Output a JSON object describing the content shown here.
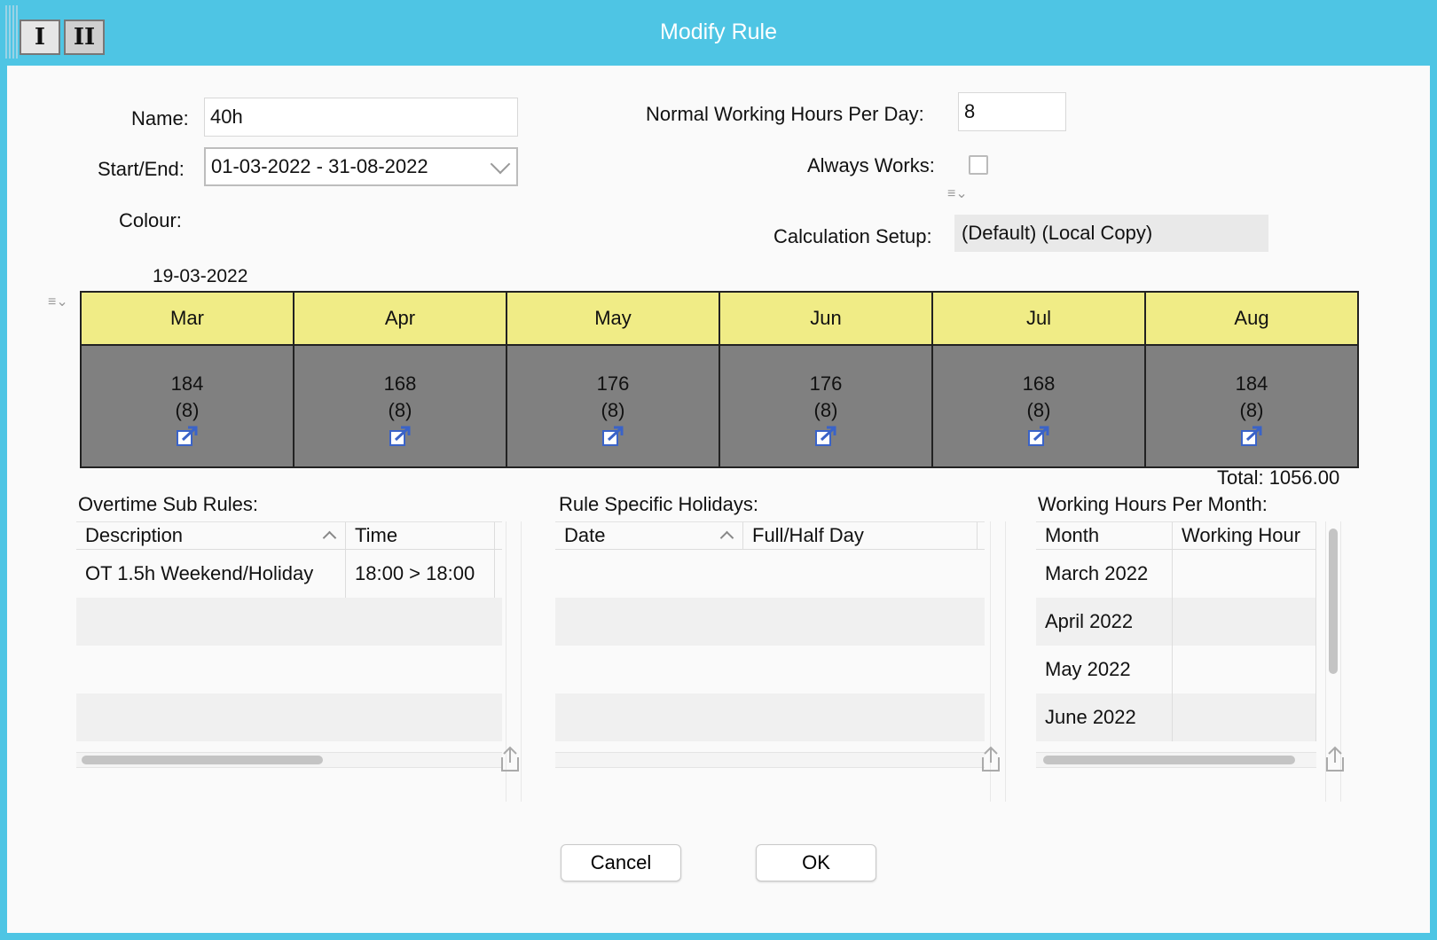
{
  "window": {
    "title": "Modify Rule",
    "toolbar": {
      "btn1": "I",
      "btn2": "II"
    }
  },
  "form": {
    "name_label": "Name:",
    "name_value": "40h",
    "startend_label": "Start/End:",
    "startend_value": "01-03-2022 - 31-08-2022",
    "colour_label": "Colour:",
    "nwh_label": "Normal Working Hours Per Day:",
    "nwh_value": "8",
    "always_label": "Always Works:",
    "always_checked": false,
    "calc_label": "Calculation Setup:",
    "calc_value": "(Default) (Local Copy)"
  },
  "calendar": {
    "marker_date": "19-03-2022",
    "months": [
      {
        "name": "Mar",
        "hours": "184",
        "per_day": "(8)"
      },
      {
        "name": "Apr",
        "hours": "168",
        "per_day": "(8)"
      },
      {
        "name": "May",
        "hours": "176",
        "per_day": "(8)"
      },
      {
        "name": "Jun",
        "hours": "176",
        "per_day": "(8)"
      },
      {
        "name": "Jul",
        "hours": "168",
        "per_day": "(8)"
      },
      {
        "name": "Aug",
        "hours": "184",
        "per_day": "(8)"
      }
    ],
    "total": "Total: 1056.00"
  },
  "overtime": {
    "label": "Overtime Sub Rules:",
    "columns": [
      "Description",
      "Time"
    ],
    "rows": [
      {
        "description": "OT 1.5h Weekend/Holiday",
        "time": "18:00 > 18:00"
      }
    ]
  },
  "holidays": {
    "label": "Rule Specific Holidays:",
    "columns": [
      "Date",
      "Full/Half Day"
    ],
    "rows": []
  },
  "working_months": {
    "label": "Working Hours Per Month:",
    "columns": [
      "Month",
      "Working Hour"
    ],
    "rows": [
      "March 2022",
      "April 2022",
      "May 2022",
      "June 2022"
    ]
  },
  "buttons": {
    "cancel": "Cancel",
    "ok": "OK"
  },
  "colors": {
    "titlebar": "#4ec5e4",
    "month_header": "#f0ec86",
    "month_body": "#808080"
  }
}
